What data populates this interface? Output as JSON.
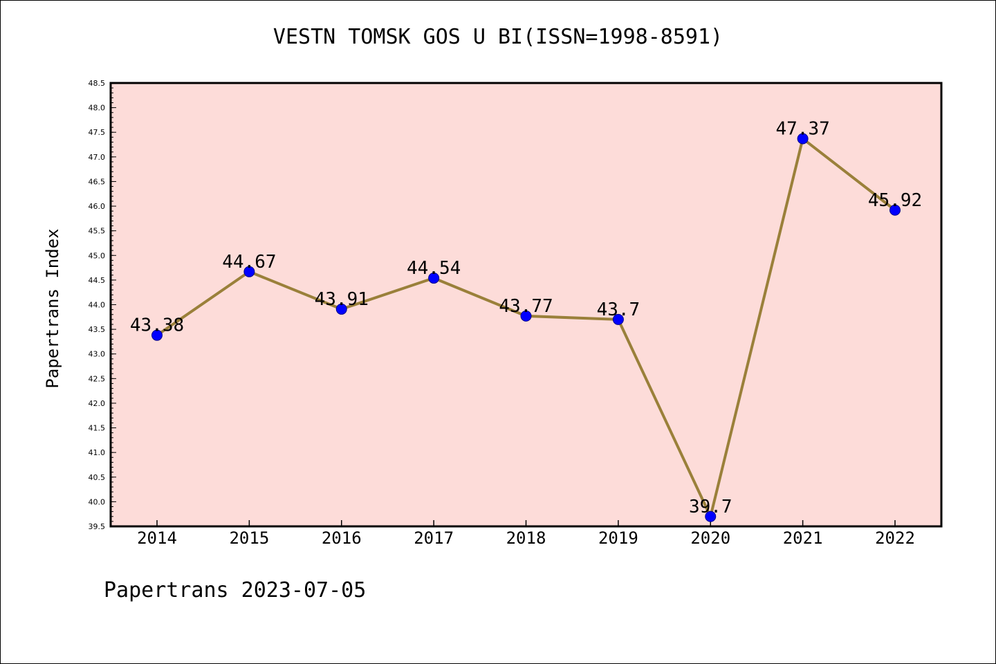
{
  "chart_data": {
    "type": "line",
    "title": "VESTN TOMSK GOS U BI(ISSN=1998-8591)",
    "ylabel": "Papertrans Index",
    "xlabel": "",
    "footer": "Papertrans 2023-07-05",
    "categories": [
      "2014",
      "2015",
      "2016",
      "2017",
      "2018",
      "2019",
      "2020",
      "2021",
      "2022"
    ],
    "series": [
      {
        "values": [
          43.38,
          44.67,
          43.91,
          44.54,
          43.77,
          43.7,
          39.7,
          47.37,
          45.92
        ]
      }
    ],
    "data_labels": [
      "43.38",
      "44.67",
      "43.91",
      "44.54",
      "43.77",
      "43.7",
      "39.7",
      "47.37",
      "45.92"
    ],
    "ylim": [
      39.5,
      48.5
    ],
    "yticks": [
      "39.5",
      "40.0",
      "40.5",
      "41.0",
      "41.5",
      "42.0",
      "42.5",
      "43.0",
      "43.5",
      "44.0",
      "44.5",
      "45.0",
      "45.5",
      "46.0",
      "46.5",
      "47.0",
      "47.5",
      "48.0",
      "48.5"
    ],
    "grid": false,
    "colors": {
      "plot_background": "#fddcd9",
      "line": "#9a803a",
      "marker": "#0000ff",
      "marker_edge": "#00008b"
    }
  }
}
